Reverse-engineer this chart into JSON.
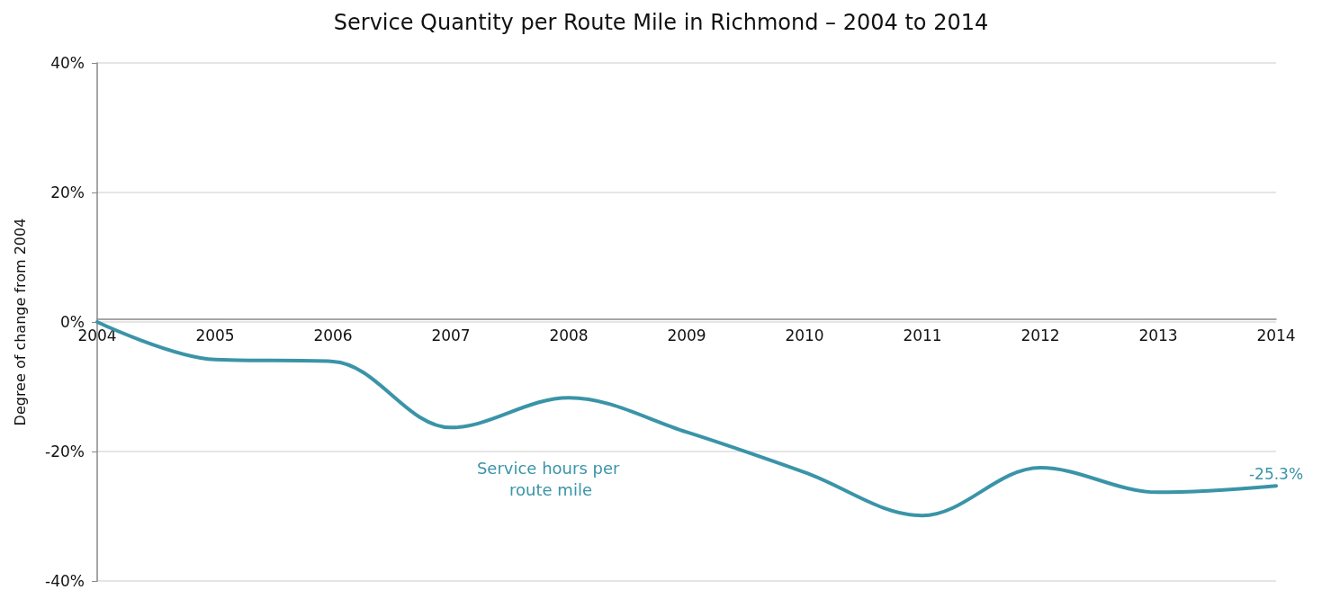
{
  "chart_data": {
    "type": "line",
    "title": "Service Quantity per Route Mile in Richmond – 2004 to 2014",
    "ylabel": "Degree of change from 2004",
    "categories": [
      "2004",
      "2005",
      "2006",
      "2007",
      "2008",
      "2009",
      "2010",
      "2011",
      "2012",
      "2013",
      "2014"
    ],
    "series": [
      {
        "color": "#3a94a8",
        "values": [
          0,
          -5.8,
          -6.1,
          -16.3,
          -11.7,
          -17,
          -23.2,
          -29.9,
          -22.5,
          -26.3,
          -25.3
        ],
        "value_labels": [
          null,
          null,
          null,
          null,
          null,
          null,
          null,
          null,
          null,
          null,
          "-25.3%"
        ]
      }
    ],
    "ylim": [
      -40,
      40
    ],
    "yticks": [
      {
        "value": -40,
        "label": "-40%"
      },
      {
        "value": -20,
        "label": "-20%"
      },
      {
        "value": 0,
        "label": "0%"
      },
      {
        "value": 20,
        "label": "20%"
      },
      {
        "value": 40,
        "label": "40%"
      }
    ],
    "annotations": [
      "Service hours per route mile"
    ],
    "grid": "y",
    "marker": "none",
    "line_style": "solid"
  }
}
